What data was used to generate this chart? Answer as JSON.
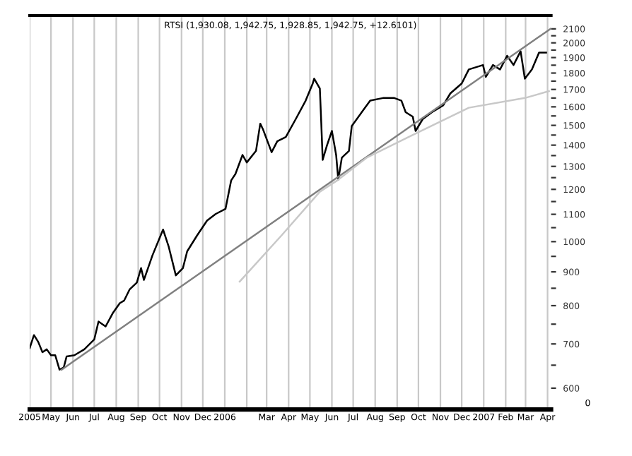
{
  "chart_data": {
    "type": "line",
    "title": "RTSI (1,930.08, 1,942.75, 1,928.85, 1,942.75, +12.6101)",
    "log": "y",
    "grid": "x",
    "legend": false,
    "marker": "none",
    "line_style": "solid",
    "xlim": [
      "2005-04-01",
      "2007-04-06"
    ],
    "ylim": [
      557,
      2200
    ],
    "xticks": [
      {
        "value": "2005-04-01",
        "label": "2005"
      },
      {
        "value": "2005-05-01",
        "label": "May"
      },
      {
        "value": "2005-06-01",
        "label": "Jun"
      },
      {
        "value": "2005-07-01",
        "label": "Jul"
      },
      {
        "value": "2005-08-01",
        "label": "Aug"
      },
      {
        "value": "2005-09-01",
        "label": "Sep"
      },
      {
        "value": "2005-10-01",
        "label": "Oct"
      },
      {
        "value": "2005-11-01",
        "label": "Nov"
      },
      {
        "value": "2005-12-01",
        "label": "Dec"
      },
      {
        "value": "2006-01-01",
        "label": "2006"
      },
      {
        "value": "2006-02-01",
        "label": null
      },
      {
        "value": "2006-03-01",
        "label": "Mar"
      },
      {
        "value": "2006-04-01",
        "label": "Apr"
      },
      {
        "value": "2006-05-01",
        "label": "May"
      },
      {
        "value": "2006-06-01",
        "label": "Jun"
      },
      {
        "value": "2006-07-01",
        "label": "Jul"
      },
      {
        "value": "2006-08-01",
        "label": "Aug"
      },
      {
        "value": "2006-09-01",
        "label": "Sep"
      },
      {
        "value": "2006-10-01",
        "label": "Oct"
      },
      {
        "value": "2006-11-01",
        "label": "Nov"
      },
      {
        "value": "2006-12-01",
        "label": "Dec"
      },
      {
        "value": "2007-01-01",
        "label": "2007"
      },
      {
        "value": "2007-02-01",
        "label": "Feb"
      },
      {
        "value": "2007-03-01",
        "label": "Mar"
      },
      {
        "value": "2007-04-01",
        "label": "Apr"
      }
    ],
    "yticks": [
      600,
      {
        "value": 650,
        "label": null
      },
      700,
      {
        "value": 750,
        "label": null
      },
      800,
      {
        "value": 850,
        "label": null
      },
      900,
      {
        "value": 950,
        "label": null
      },
      1000,
      {
        "value": 1050,
        "label": null
      },
      1100,
      {
        "value": 1150,
        "label": null
      },
      1200,
      {
        "value": 1250,
        "label": null
      },
      1300,
      {
        "value": 1350,
        "label": null
      },
      1400,
      {
        "value": 1450,
        "label": null
      },
      1500,
      {
        "value": 1550,
        "label": null
      },
      1600,
      {
        "value": 1650,
        "label": null
      },
      1700,
      {
        "value": 1750,
        "label": null
      },
      1800,
      {
        "value": 1850,
        "label": null
      },
      1900,
      {
        "value": 1950,
        "label": null
      },
      2000,
      {
        "value": 2050,
        "label": null
      },
      2100
    ],
    "annotations": [
      "0"
    ],
    "series": [
      {
        "color": "#000000",
        "x": [
          "2005-04-01",
          "2005-04-07",
          "2005-04-13",
          "2005-04-19",
          "2005-04-25",
          "2005-05-01",
          "2005-05-07",
          "2005-05-13",
          "2005-05-19",
          "2005-05-23",
          "2005-06-03",
          "2005-06-17",
          "2005-07-01",
          "2005-07-07",
          "2005-07-17",
          "2005-07-27",
          "2005-08-06",
          "2005-08-12",
          "2005-08-20",
          "2005-08-30",
          "2005-09-05",
          "2005-09-09",
          "2005-09-21",
          "2005-10-06",
          "2005-10-14",
          "2005-10-24",
          "2005-11-03",
          "2005-11-09",
          "2005-11-23",
          "2005-12-07",
          "2005-12-19",
          "2006-01-02",
          "2006-01-10",
          "2006-01-16",
          "2006-01-26",
          "2006-02-01",
          "2006-02-14",
          "2006-02-20",
          "2006-02-24",
          "2006-03-08",
          "2006-03-16",
          "2006-03-28",
          "2006-04-11",
          "2006-04-25",
          "2006-05-05",
          "2006-05-07",
          "2006-05-15",
          "2006-05-17",
          "2006-05-19",
          "2006-05-25",
          "2006-06-01",
          "2006-06-07",
          "2006-06-10",
          "2006-06-15",
          "2006-06-25",
          "2006-06-29",
          "2006-07-13",
          "2006-07-25",
          "2006-08-12",
          "2006-08-28",
          "2006-09-07",
          "2006-09-13",
          "2006-09-23",
          "2006-09-27",
          "2006-10-07",
          "2006-10-20",
          "2006-11-05",
          "2006-11-15",
          "2006-12-01",
          "2006-12-11",
          "2006-12-31",
          "2007-01-04",
          "2007-01-14",
          "2007-01-24",
          "2007-02-03",
          "2007-02-12",
          "2007-02-22",
          "2007-02-28",
          "2007-03-10",
          "2007-03-20",
          "2007-03-30"
        ],
        "values": [
          690,
          722,
          705,
          680,
          687,
          673,
          673,
          640,
          645,
          670,
          673,
          687,
          711,
          757,
          744,
          779,
          807,
          814,
          847,
          867,
          912,
          875,
          953,
          1043,
          982,
          889,
          912,
          967,
          1022,
          1076,
          1101,
          1121,
          1238,
          1266,
          1353,
          1318,
          1372,
          1509,
          1478,
          1366,
          1419,
          1440,
          1533,
          1635,
          1736,
          1765,
          1706,
          1513,
          1330,
          1398,
          1471,
          1352,
          1241,
          1340,
          1372,
          1497,
          1570,
          1635,
          1650,
          1650,
          1635,
          1570,
          1546,
          1471,
          1533,
          1570,
          1609,
          1677,
          1736,
          1823,
          1851,
          1776,
          1851,
          1823,
          1912,
          1851,
          1942,
          1765,
          1823,
          1933,
          1933
        ]
      },
      {
        "color": "#808080",
        "x": [
          "2005-05-16",
          "2007-04-05"
        ],
        "values": [
          640,
          2100
        ]
      },
      {
        "color": "#c8c8c8",
        "x": [
          "2006-01-22",
          "2006-03-22",
          "2006-05-15",
          "2006-06-10",
          "2006-07-20",
          "2006-09-17",
          "2006-12-11",
          "2007-02-28",
          "2007-04-03"
        ],
        "values": [
          870,
          1022,
          1190,
          1241,
          1340,
          1440,
          1595,
          1650,
          1690
        ]
      }
    ]
  }
}
